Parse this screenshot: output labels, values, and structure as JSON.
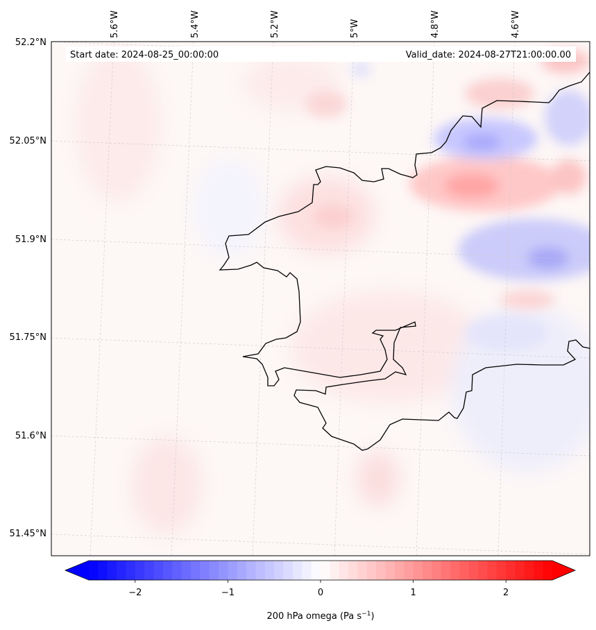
{
  "header": {
    "start_date": "Start date: 2024-08-25_00:00:00",
    "valid_date": "Valid_date: 2024-08-27T21:00:00.00"
  },
  "longitude_labels": [
    "5.6°W",
    "5.4°W",
    "5.2°W",
    "5°W",
    "4.8°W",
    "4.6°W"
  ],
  "latitude_labels": [
    "52.2°N",
    "52.05°N",
    "51.9°N",
    "51.75°N",
    "51.6°N",
    "51.45°N"
  ],
  "colorbar": {
    "label": "200 hPa omega (Pa s",
    "label_superscript": "−1",
    "label_suffix": ")",
    "tick_labels": [
      "−2",
      "−1",
      "0",
      "1",
      "2"
    ],
    "range": [
      -2.5,
      2.5
    ],
    "colormap": "bwr",
    "negative_color": "#0000ff",
    "zero_color": "#ffffff",
    "positive_color": "#ff0000"
  }
}
